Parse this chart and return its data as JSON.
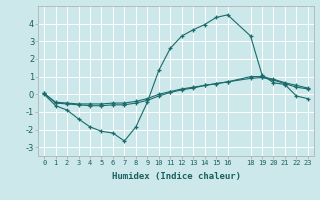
{
  "xlabel": "Humidex (Indice chaleur)",
  "bg_color": "#cce8ea",
  "grid_color": "#ffffff",
  "line_color": "#1a6b6b",
  "xlim": [
    -0.5,
    23.5
  ],
  "ylim": [
    -3.5,
    5.0
  ],
  "xticks": [
    0,
    1,
    2,
    3,
    4,
    5,
    6,
    7,
    8,
    9,
    10,
    11,
    12,
    13,
    14,
    15,
    16,
    18,
    19,
    20,
    21,
    22,
    23
  ],
  "yticks": [
    -3,
    -2,
    -1,
    0,
    1,
    2,
    3,
    4
  ],
  "curve1_x": [
    0,
    1,
    2,
    3,
    4,
    5,
    6,
    7,
    8,
    9,
    10,
    11,
    12,
    13,
    14,
    15,
    16,
    18,
    19,
    20,
    21,
    22,
    23
  ],
  "curve1_y": [
    0.0,
    -0.65,
    -0.9,
    -1.4,
    -1.85,
    -2.1,
    -2.2,
    -2.65,
    -1.85,
    -0.45,
    1.35,
    2.6,
    3.3,
    3.65,
    3.95,
    4.35,
    4.5,
    3.3,
    1.1,
    0.65,
    0.55,
    -0.1,
    -0.25
  ],
  "curve2_x": [
    0,
    1,
    2,
    3,
    4,
    5,
    6,
    7,
    8,
    9,
    10,
    11,
    12,
    13,
    14,
    15,
    16,
    18,
    19,
    20,
    21,
    22,
    23
  ],
  "curve2_y": [
    0.05,
    -0.5,
    -0.55,
    -0.6,
    -0.65,
    -0.65,
    -0.6,
    -0.6,
    -0.5,
    -0.35,
    -0.1,
    0.1,
    0.25,
    0.35,
    0.5,
    0.6,
    0.7,
    1.0,
    1.0,
    0.85,
    0.65,
    0.5,
    0.35
  ],
  "curve3_x": [
    0,
    1,
    2,
    3,
    4,
    5,
    6,
    7,
    8,
    9,
    10,
    11,
    12,
    13,
    14,
    15,
    16,
    18,
    19,
    20,
    21,
    22,
    23
  ],
  "curve3_y": [
    0.05,
    -0.45,
    -0.5,
    -0.55,
    -0.55,
    -0.55,
    -0.5,
    -0.5,
    -0.4,
    -0.25,
    0.0,
    0.15,
    0.3,
    0.4,
    0.5,
    0.6,
    0.7,
    0.9,
    0.95,
    0.8,
    0.6,
    0.4,
    0.3
  ]
}
